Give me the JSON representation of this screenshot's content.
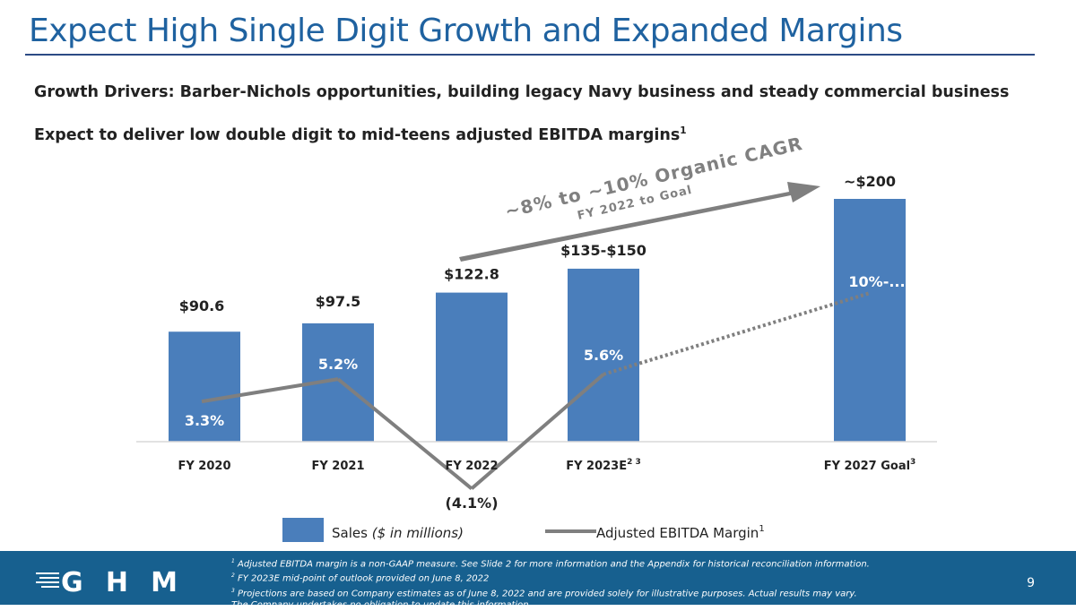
{
  "title": "Expect High Single Digit Growth and Expanded Margins",
  "bullets": [
    "Growth Drivers:  Barber-Nichols opportunities, building legacy Navy business and steady commercial business",
    "Expect to deliver low double digit to mid-teens adjusted EBITDA margins"
  ],
  "bullet2_sup": "1",
  "arrow": {
    "main": "~8% to ~10% Organic CAGR",
    "sub": "FY 2022 to Goal",
    "color": "#7f7f7f"
  },
  "chart_data": {
    "type": "bar+line",
    "categories": [
      "FY 2020",
      "FY 2021",
      "FY 2022",
      "FY 2023E",
      "FY 2027 Goal"
    ],
    "category_sups": [
      "",
      "",
      "",
      "2 3",
      "3"
    ],
    "series": [
      {
        "name": "Sales ($ in millions)",
        "type": "bar",
        "values": [
          90.6,
          97.5,
          122.8,
          142.5,
          200
        ],
        "labels": [
          "$90.6",
          "$97.5",
          "$122.8",
          "$135-$150",
          "~$200"
        ],
        "color": "#4a7ebb"
      },
      {
        "name": "Adjusted EBITDA Margin",
        "type": "line",
        "values": [
          3.3,
          5.2,
          -4.1,
          5.6,
          12.5
        ],
        "labels": [
          "3.3%",
          "5.2%",
          "(4.1%)",
          "5.6%",
          "10%-..."
        ],
        "color": "#7f7f7f",
        "dashed_from_index": 3
      }
    ],
    "legend": {
      "sales_label": "Sales",
      "sales_italic": "($ in millions)",
      "margin_label": "Adjusted EBITDA Margin",
      "margin_sup": "1",
      "placement": "bottom"
    }
  },
  "footer": {
    "logo": "GHM",
    "notes": [
      "Adjusted EBITDA margin is a non-GAAP measure.  See Slide 2 for more information and the Appendix for historical reconciliation information.",
      "FY 2023E mid-point of outlook provided on June 8, 2022",
      "Projections are based on Company estimates as of June 8, 2022 and are provided solely for illustrative purposes.  Actual results may vary.",
      "The Company undertakes no obligation to update this information."
    ],
    "note_sups": [
      "1",
      "2",
      "3",
      ""
    ],
    "page": "9"
  }
}
